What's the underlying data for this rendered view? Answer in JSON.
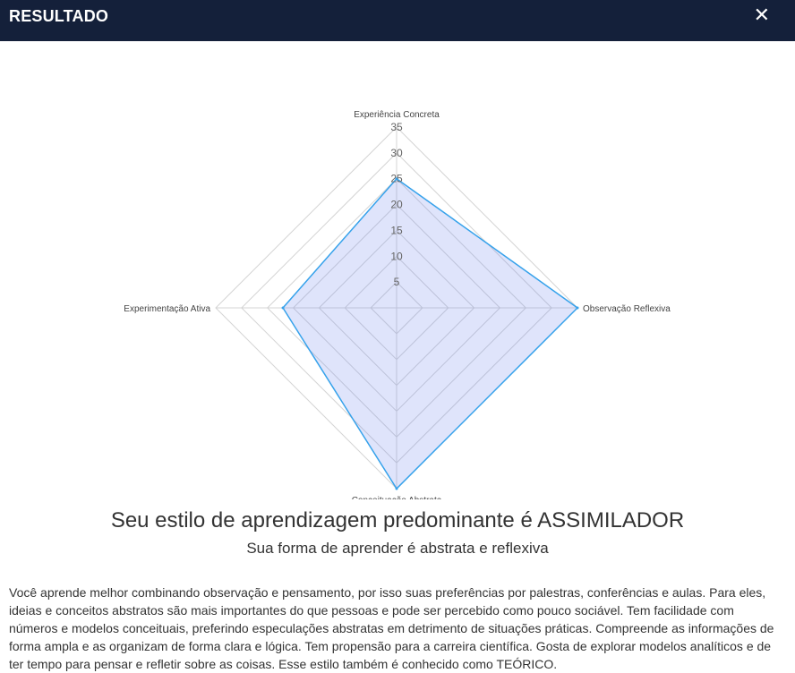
{
  "header": {
    "title": "RESULTADO",
    "close_icon": "close-icon"
  },
  "chart_data": {
    "type": "radar",
    "axes": [
      "Experiência Concreta",
      "Observação Reflexiva",
      "Conceituação Abstrata",
      "Experimentação Ativa"
    ],
    "ticks": [
      5,
      10,
      15,
      20,
      25,
      30,
      35
    ],
    "rlim": [
      0,
      35
    ],
    "series": [
      {
        "values": [
          25,
          35,
          35,
          22
        ],
        "stroke": "#36a2eb",
        "fill": "rgba(110,130,235,0.22)"
      }
    ],
    "grid_color": "#d4d4d4"
  },
  "result": {
    "heading": "Seu estilo de aprendizagem predominante é ASSIMILADOR",
    "subheading": "Sua forma de aprender é abstrata e reflexiva",
    "description": "Você aprende melhor combinando observação e pensamento, por isso suas preferências por palestras, conferências e aulas. Para eles, ideias e conceitos abstratos são mais importantes do que pessoas e pode ser percebido como pouco sociável. Tem facilidade com números e modelos conceituais, preferindo especulações abstratas em detrimento de situações práticas. Compreende as informações de forma ampla e as organizam de forma clara e lógica. Tem propensão para a carreira científica. Gosta de explorar modelos analíticos e de ter tempo para pensar e refletir sobre as coisas. Esse estilo também é conhecido como TEÓRICO."
  }
}
